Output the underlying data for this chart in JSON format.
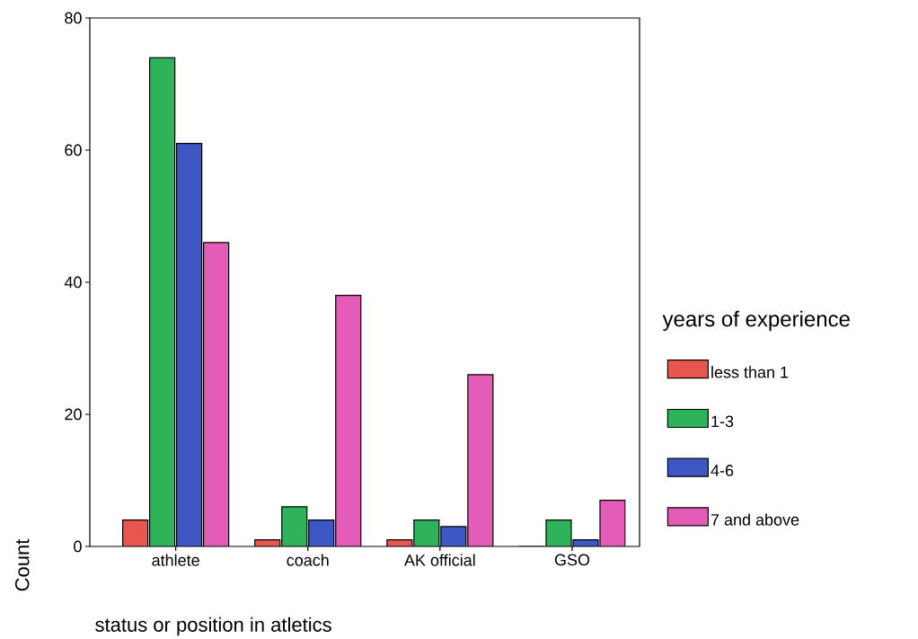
{
  "chart_data": {
    "type": "bar",
    "xlabel": "status or position in atletics",
    "ylabel": "Count",
    "legend_title": "years of experience",
    "categories": [
      "athlete",
      "coach",
      "AK official",
      "GSO"
    ],
    "series": [
      {
        "name": "less than 1",
        "color": "#e8574f",
        "values": [
          4,
          1,
          1,
          0
        ]
      },
      {
        "name": "1-3",
        "color": "#2eb35a",
        "values": [
          74,
          6,
          4,
          4
        ]
      },
      {
        "name": "4-6",
        "color": "#3d57c4",
        "values": [
          61,
          4,
          3,
          1
        ]
      },
      {
        "name": "7 and above",
        "color": "#e35cb8",
        "values": [
          46,
          38,
          26,
          7
        ]
      }
    ],
    "ylim": [
      0,
      80
    ],
    "yticks": [
      0,
      20,
      40,
      60,
      80
    ],
    "grid": false,
    "legend": "right"
  }
}
